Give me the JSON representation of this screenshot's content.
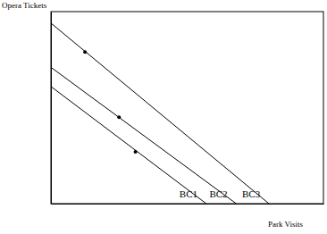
{
  "chart_data": {
    "type": "line",
    "y_label": "Opera Tickets",
    "x_label": "Park Visits",
    "xlim": [
      0,
      100
    ],
    "ylim": [
      0,
      100
    ],
    "tick_labels": false,
    "grid": false,
    "series": [
      {
        "name": "BC1",
        "color": "#000000",
        "x": [
          0,
          57
        ],
        "values": [
          61,
          0
        ]
      },
      {
        "name": "BC2",
        "color": "#000000",
        "x": [
          0,
          68
        ],
        "values": [
          71,
          0
        ]
      },
      {
        "name": "BC3",
        "color": "#000000",
        "x": [
          0,
          80
        ],
        "values": [
          94,
          0
        ]
      },
      {
        "type": "scatter",
        "color": "#000000",
        "marker": "circle",
        "x": [
          31,
          25,
          12.5
        ],
        "values": [
          27,
          45,
          79
        ]
      }
    ]
  }
}
